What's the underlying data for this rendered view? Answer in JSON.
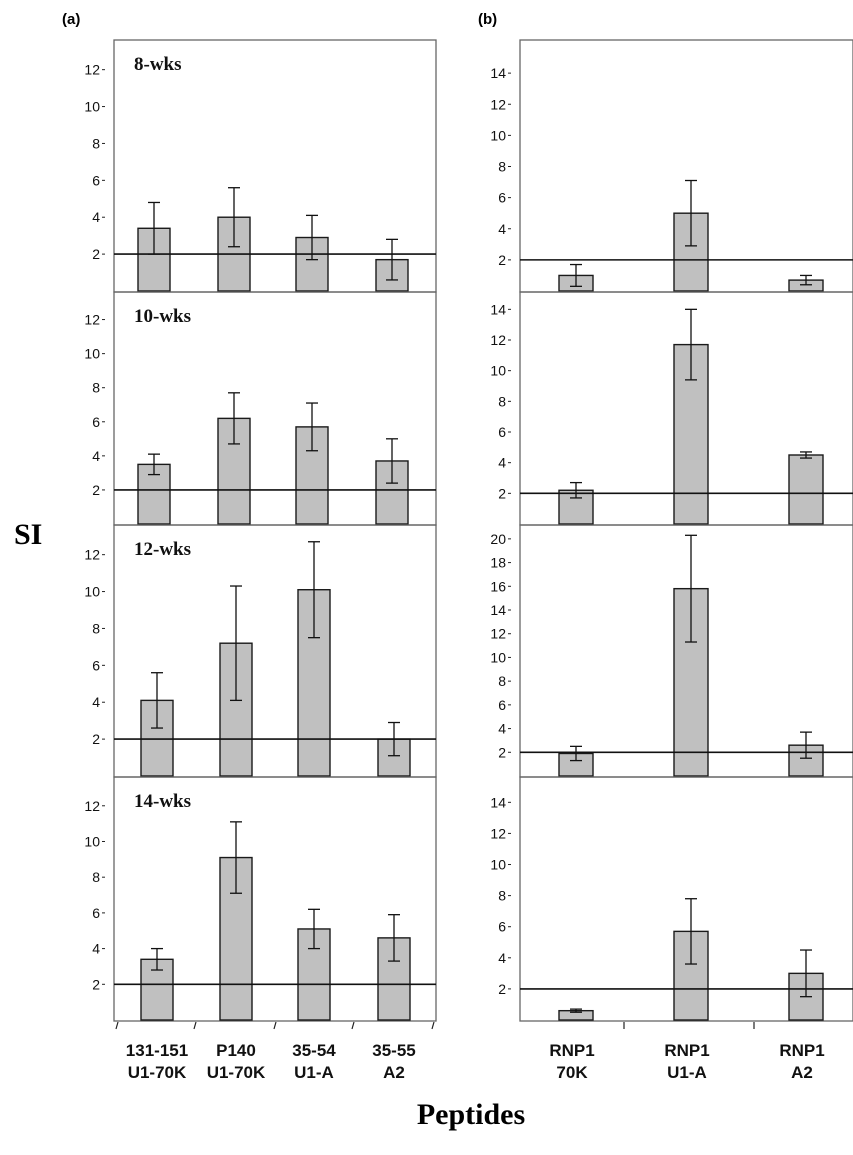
{
  "figure": {
    "panel_a_label": "(a)",
    "panel_b_label": "(b)",
    "y_title": "SI",
    "x_title": "Peptides"
  },
  "chart_data": [
    {
      "type": "bar",
      "panel": "a",
      "week_label": "8-wks",
      "categories": [
        "131-151\nU1-70K",
        "P140\nU1-70K",
        "35-54\nU1-A",
        "35-55\nA2"
      ],
      "values": [
        3.4,
        4.0,
        2.9,
        1.7
      ],
      "errors": [
        1.4,
        1.6,
        1.2,
        1.1
      ],
      "ylim": [
        0,
        13.5
      ],
      "yticks": [
        2,
        4,
        6,
        8,
        10,
        12
      ],
      "baseline": 2
    },
    {
      "type": "bar",
      "panel": "a",
      "week_label": "10-wks",
      "categories": [
        "131-151\nU1-70K",
        "P140\nU1-70K",
        "35-54\nU1-A",
        "35-55\nA2"
      ],
      "values": [
        3.5,
        6.2,
        5.7,
        3.7
      ],
      "errors": [
        0.6,
        1.5,
        1.4,
        1.3
      ],
      "ylim": [
        0,
        13.5
      ],
      "yticks": [
        2,
        4,
        6,
        8,
        10,
        12
      ],
      "baseline": 2
    },
    {
      "type": "bar",
      "panel": "a",
      "week_label": "12-wks",
      "categories": [
        "131-151\nU1-70K",
        "P140\nU1-70K",
        "35-54\nU1-A",
        "35-55\nA2"
      ],
      "values": [
        4.1,
        7.2,
        10.1,
        2.0
      ],
      "errors": [
        1.5,
        3.1,
        2.6,
        0.9
      ],
      "ylim": [
        0,
        13.5
      ],
      "yticks": [
        2,
        4,
        6,
        8,
        10,
        12
      ],
      "baseline": 2
    },
    {
      "type": "bar",
      "panel": "a",
      "week_label": "14-wks",
      "categories": [
        "131-151\nU1-70K",
        "P140\nU1-70K",
        "35-54\nU1-A",
        "35-55\nA2"
      ],
      "values": [
        3.4,
        9.1,
        5.1,
        4.6
      ],
      "errors": [
        0.6,
        2.0,
        1.1,
        1.3
      ],
      "ylim": [
        0,
        13.5
      ],
      "yticks": [
        2,
        4,
        6,
        8,
        10,
        12
      ],
      "baseline": 2
    },
    {
      "type": "bar",
      "panel": "b",
      "week_label": "",
      "categories": [
        "RNP1\n70K",
        "RNP1\nU1-A",
        "RNP1\nA2"
      ],
      "values": [
        1.0,
        5.0,
        0.7
      ],
      "errors": [
        0.7,
        2.1,
        0.3
      ],
      "ylim": [
        0,
        16
      ],
      "yticks": [
        2,
        4,
        6,
        8,
        10,
        12,
        14
      ],
      "baseline": 2
    },
    {
      "type": "bar",
      "panel": "b",
      "week_label": "",
      "categories": [
        "RNP1\n70K",
        "RNP1\nU1-A",
        "RNP1\nA2"
      ],
      "values": [
        2.2,
        11.7,
        4.5
      ],
      "errors": [
        0.5,
        2.3,
        0.2
      ],
      "ylim": [
        0,
        15
      ],
      "yticks": [
        2,
        4,
        6,
        8,
        10,
        12,
        14
      ],
      "baseline": 2
    },
    {
      "type": "bar",
      "panel": "b",
      "week_label": "",
      "categories": [
        "RNP1\n70K",
        "RNP1\nU1-A",
        "RNP1\nA2"
      ],
      "values": [
        1.9,
        15.8,
        2.6
      ],
      "errors": [
        0.6,
        4.5,
        1.1
      ],
      "ylim": [
        0,
        21
      ],
      "yticks": [
        2,
        4,
        6,
        8,
        10,
        12,
        14,
        16,
        18,
        20
      ],
      "baseline": 2
    },
    {
      "type": "bar",
      "panel": "b",
      "week_label": "",
      "categories": [
        "RNP1\n70K",
        "RNP1\nU1-A",
        "RNP1\nA2"
      ],
      "values": [
        0.6,
        5.7,
        3.0
      ],
      "errors": [
        0.1,
        2.1,
        1.5
      ],
      "ylim": [
        0,
        15.5
      ],
      "yticks": [
        2,
        4,
        6,
        8,
        10,
        12,
        14
      ],
      "baseline": 2
    }
  ]
}
